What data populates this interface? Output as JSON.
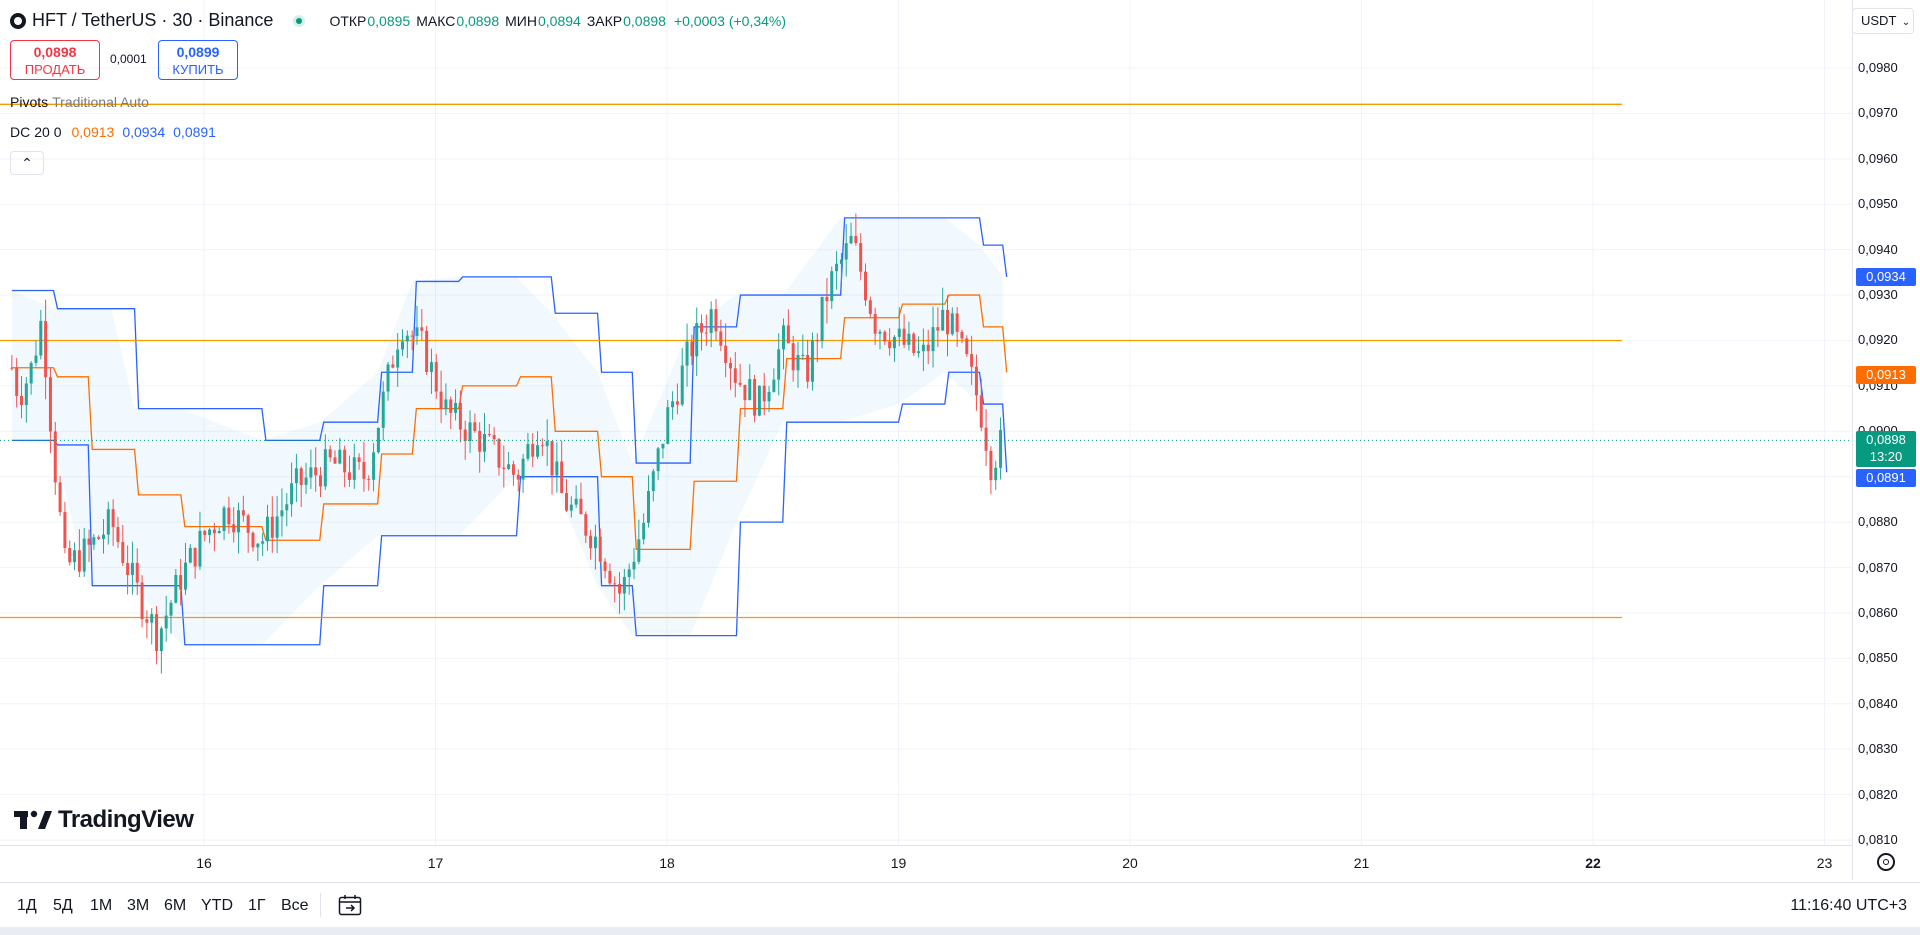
{
  "header": {
    "symbol": "HFT / TetherUS · 30 · Binance",
    "open_label": "ОТКР",
    "open_value": "0,0895",
    "high_label": "МАКС",
    "high_value": "0,0898",
    "low_label": "МИН",
    "low_value": "0,0894",
    "close_label": "ЗАКР",
    "close_value": "0,0898",
    "change": "+0,0003 (+0,34%)",
    "currency": "USDT"
  },
  "trade": {
    "sell_price": "0,0898",
    "sell_label": "ПРОДАТЬ",
    "spread": "0,0001",
    "buy_price": "0,0899",
    "buy_label": "КУПИТЬ"
  },
  "indicators": {
    "pivots_name": "Pivots",
    "pivots_params": "Traditional Auto",
    "dc_name": "DC",
    "dc_params": "20 0",
    "dc_mid": "0,0913",
    "dc_upper": "0,0934",
    "dc_lower": "0,0891"
  },
  "logo_text": "TradingView",
  "axis_tags": {
    "upper": "0,0934",
    "mid": "0,0913",
    "last": "0,0898",
    "countdown": "13:20",
    "lower": "0,0891"
  },
  "bottom": {
    "ranges": [
      "1Д",
      "5Д",
      "1М",
      "3М",
      "6М",
      "YTD",
      "1Г",
      "Все"
    ],
    "clock": "11:16:40 UTC+3"
  },
  "colors": {
    "up": "#26a69a",
    "down": "#ef5350",
    "dc_band": "#2962ff",
    "dc_mid": "#ff6d00",
    "pivot": "#f59d00",
    "buy_accent": "#2962ff",
    "sell_accent": "#f23645"
  },
  "chart_data": {
    "type": "candlestick",
    "y_ticks": [
      "0,0980",
      "0,0970",
      "0,0960",
      "0,0950",
      "0,0940",
      "0,0930",
      "0,0920",
      "0,0910",
      "0,0900",
      "0,0890",
      "0,0880",
      "0,0870",
      "0,0860",
      "0,0850",
      "0,0840",
      "0,0830",
      "0,0820",
      "0,0810"
    ],
    "x_ticks": [
      "16",
      "17",
      "18",
      "19",
      "20",
      "21",
      "22",
      "23"
    ],
    "ylim": [
      0.0807,
      0.0988
    ],
    "xlim_days": [
      15.17,
      23.17
    ],
    "last_price": 0.0898,
    "pivot_levels": [
      0.0972,
      0.092,
      0.0859
    ],
    "donchian_anchors": [
      {
        "day": 15.17,
        "upper": 0.0931,
        "lower": 0.0898,
        "mid": 0.0914
      },
      {
        "day": 15.35,
        "upper": 0.0927,
        "lower": 0.0897,
        "mid": 0.0912
      },
      {
        "day": 15.5,
        "upper": 0.0927,
        "lower": 0.0866,
        "mid": 0.0896
      },
      {
        "day": 15.6,
        "upper": 0.0927,
        "lower": 0.0866,
        "mid": 0.0896
      },
      {
        "day": 15.7,
        "upper": 0.0905,
        "lower": 0.0866,
        "mid": 0.0886
      },
      {
        "day": 15.9,
        "upper": 0.0905,
        "lower": 0.0853,
        "mid": 0.0879
      },
      {
        "day": 16.25,
        "upper": 0.0898,
        "lower": 0.0853,
        "mid": 0.0876
      },
      {
        "day": 16.5,
        "upper": 0.0902,
        "lower": 0.0866,
        "mid": 0.0884
      },
      {
        "day": 16.75,
        "upper": 0.0913,
        "lower": 0.0877,
        "mid": 0.0895
      },
      {
        "day": 16.9,
        "upper": 0.0933,
        "lower": 0.0877,
        "mid": 0.0905
      },
      {
        "day": 17.1,
        "upper": 0.0934,
        "lower": 0.0877,
        "mid": 0.091
      },
      {
        "day": 17.35,
        "upper": 0.0934,
        "lower": 0.089,
        "mid": 0.0912
      },
      {
        "day": 17.5,
        "upper": 0.0926,
        "lower": 0.089,
        "mid": 0.09
      },
      {
        "day": 17.7,
        "upper": 0.0913,
        "lower": 0.0866,
        "mid": 0.089
      },
      {
        "day": 17.85,
        "upper": 0.0893,
        "lower": 0.0855,
        "mid": 0.0874
      },
      {
        "day": 18.1,
        "upper": 0.0923,
        "lower": 0.0855,
        "mid": 0.0889
      },
      {
        "day": 18.3,
        "upper": 0.093,
        "lower": 0.088,
        "mid": 0.0905
      },
      {
        "day": 18.5,
        "upper": 0.093,
        "lower": 0.0902,
        "mid": 0.0916
      },
      {
        "day": 18.75,
        "upper": 0.0947,
        "lower": 0.0902,
        "mid": 0.0925
      },
      {
        "day": 19.0,
        "upper": 0.0947,
        "lower": 0.0906,
        "mid": 0.0928
      },
      {
        "day": 19.2,
        "upper": 0.0947,
        "lower": 0.0913,
        "mid": 0.093
      },
      {
        "day": 19.35,
        "upper": 0.0941,
        "lower": 0.0906,
        "mid": 0.0923
      },
      {
        "day": 19.45,
        "upper": 0.0934,
        "lower": 0.0891,
        "mid": 0.0913
      }
    ],
    "close_path": [
      {
        "day": 15.17,
        "close": 0.0914
      },
      {
        "day": 15.2,
        "close": 0.0908
      },
      {
        "day": 15.25,
        "close": 0.0913
      },
      {
        "day": 15.3,
        "close": 0.0925
      },
      {
        "day": 15.35,
        "close": 0.0895
      },
      {
        "day": 15.4,
        "close": 0.087
      },
      {
        "day": 15.5,
        "close": 0.0874
      },
      {
        "day": 15.6,
        "close": 0.088
      },
      {
        "day": 15.7,
        "close": 0.0866
      },
      {
        "day": 15.8,
        "close": 0.0855
      },
      {
        "day": 15.9,
        "close": 0.0868
      },
      {
        "day": 16.0,
        "close": 0.0877
      },
      {
        "day": 16.1,
        "close": 0.0883
      },
      {
        "day": 16.25,
        "close": 0.0876
      },
      {
        "day": 16.4,
        "close": 0.0888
      },
      {
        "day": 16.55,
        "close": 0.0893
      },
      {
        "day": 16.7,
        "close": 0.089
      },
      {
        "day": 16.85,
        "close": 0.0924
      },
      {
        "day": 16.95,
        "close": 0.0918
      },
      {
        "day": 17.05,
        "close": 0.0904
      },
      {
        "day": 17.2,
        "close": 0.0898
      },
      {
        "day": 17.35,
        "close": 0.089
      },
      {
        "day": 17.45,
        "close": 0.0902
      },
      {
        "day": 17.55,
        "close": 0.0885
      },
      {
        "day": 17.7,
        "close": 0.0876
      },
      {
        "day": 17.8,
        "close": 0.0864
      },
      {
        "day": 17.9,
        "close": 0.088
      },
      {
        "day": 18.0,
        "close": 0.0903
      },
      {
        "day": 18.1,
        "close": 0.0918
      },
      {
        "day": 18.2,
        "close": 0.0927
      },
      {
        "day": 18.3,
        "close": 0.0912
      },
      {
        "day": 18.4,
        "close": 0.0906
      },
      {
        "day": 18.5,
        "close": 0.092
      },
      {
        "day": 18.6,
        "close": 0.0912
      },
      {
        "day": 18.7,
        "close": 0.0932
      },
      {
        "day": 18.8,
        "close": 0.0942
      },
      {
        "day": 18.9,
        "close": 0.0924
      },
      {
        "day": 19.0,
        "close": 0.092
      },
      {
        "day": 19.1,
        "close": 0.0916
      },
      {
        "day": 19.2,
        "close": 0.0926
      },
      {
        "day": 19.3,
        "close": 0.0914
      },
      {
        "day": 19.35,
        "close": 0.0906
      },
      {
        "day": 19.4,
        "close": 0.0893
      },
      {
        "day": 19.45,
        "close": 0.0898
      }
    ]
  }
}
